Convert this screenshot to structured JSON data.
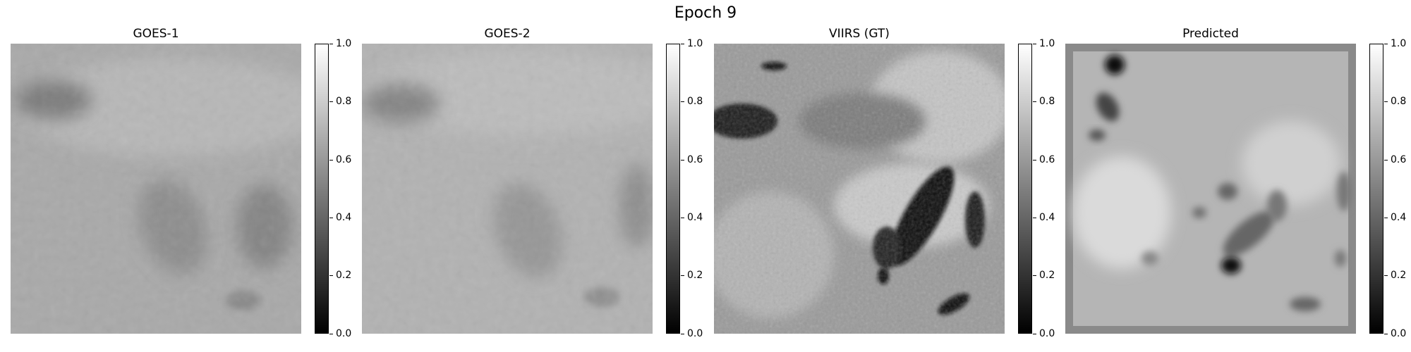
{
  "figure": {
    "title": "Epoch 9"
  },
  "panels": [
    {
      "title": "GOES-1"
    },
    {
      "title": "GOES-2"
    },
    {
      "title": "VIIRS (GT)"
    },
    {
      "title": "Predicted"
    }
  ],
  "colorbar": {
    "colormap": "gray",
    "range": [
      0.0,
      1.0
    ],
    "ticks": [
      "0.0",
      "0.2",
      "0.4",
      "0.6",
      "0.8",
      "1.0"
    ]
  }
}
